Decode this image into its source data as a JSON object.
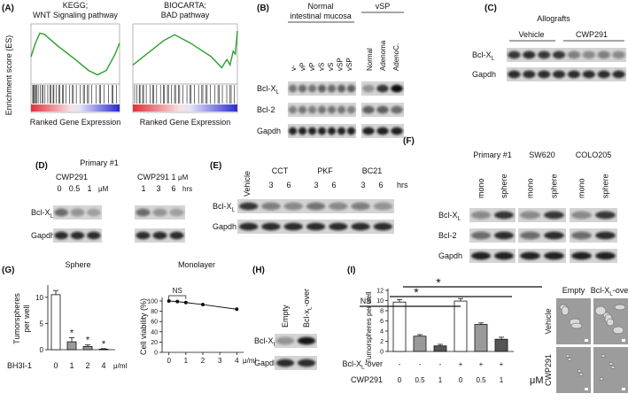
{
  "panels": {
    "A": {
      "label": "(A)",
      "y_label": "Enrichment score (ES)",
      "plots": [
        {
          "title": [
            "KEGG;",
            "WNT Signaling pathway"
          ],
          "x_label": "Ranked Gene Expression"
        },
        {
          "title": [
            "BIOCARTA;",
            "BAD pathway"
          ],
          "x_label": "Ranked Gene Expression"
        }
      ]
    },
    "B": {
      "label": "(B)",
      "groups": [
        {
          "title": [
            "Normal",
            "intestinal mucosa"
          ],
          "lanes": [
            "v-",
            "vP",
            "vP",
            "vS",
            "vS",
            "vSP",
            "vSP"
          ]
        },
        {
          "title": [
            "vSP"
          ],
          "lanes": [
            "Normal",
            "Adenoma",
            "AdenoC."
          ]
        }
      ],
      "rows": [
        {
          "name": "Bcl-X",
          "sub": "L"
        },
        "Bcl-2",
        "Gapdh"
      ]
    },
    "C": {
      "label": "(C)",
      "title": "Allografts",
      "groups": [
        "Vehicle",
        "CWP291"
      ],
      "rows": [
        {
          "name": "Bcl-X",
          "sub": "L"
        },
        "Gapdh"
      ]
    },
    "D": {
      "label": "(D)",
      "title": "Primary #1",
      "blocks": [
        {
          "header": "CWP291",
          "lanes": [
            "0",
            "0.5",
            "1"
          ],
          "unit": "μM"
        },
        {
          "header": "CWP291  1",
          "header_unit": "μM",
          "lanes": [
            "1",
            "3",
            "6"
          ],
          "unit": "hrs"
        }
      ],
      "rows": [
        {
          "name": "Bcl-X",
          "sub": "L"
        },
        "Gapdh"
      ]
    },
    "E": {
      "label": "(E)",
      "vehicle": "Vehicle",
      "groups": [
        {
          "name": "CCT",
          "lanes": [
            "3",
            "6"
          ]
        },
        {
          "name": "PKF",
          "lanes": [
            "3",
            "6"
          ]
        },
        {
          "name": "BC21",
          "lanes": [
            "3",
            "6"
          ]
        }
      ],
      "unit": "hrs",
      "rows": [
        {
          "name": "Bcl-X",
          "sub": "L"
        },
        "Gapdh"
      ]
    },
    "F": {
      "label": "(F)",
      "groups": [
        {
          "name": "Primary #1",
          "lanes": [
            "mono",
            "sphere"
          ]
        },
        {
          "name": "SW620",
          "lanes": [
            "mono",
            "sphere"
          ]
        },
        {
          "name": "COLO205",
          "lanes": [
            "mono",
            "sphere"
          ]
        }
      ],
      "rows": [
        {
          "name": "Bcl-X",
          "sub": "L"
        },
        "Bcl-2",
        "Gapdh"
      ]
    },
    "G": {
      "label": "(G)",
      "charts": [
        {
          "type": "bar",
          "title": "Sphere",
          "y_label": [
            "Tumorspheres",
            "per well"
          ],
          "x_label": "BH3I-1",
          "x_unit": "μ/ml",
          "categories": [
            "0",
            "1",
            "2",
            "4"
          ],
          "values": [
            10.5,
            1.5,
            0.6,
            0.1
          ],
          "errors": [
            0.8,
            0.8,
            0.3,
            0.1
          ],
          "colors": [
            "#ffffff",
            "#9a9a9a",
            "#9a9a9a",
            "#9a9a9a"
          ],
          "annotations": [
            null,
            "*",
            "*",
            "*"
          ],
          "ylim": [
            0,
            12
          ],
          "yticks": [
            0,
            5,
            10
          ]
        },
        {
          "type": "line",
          "title": "Monolayer",
          "y_label": "Cell viability (%)",
          "x_unit": "μ/ml",
          "annotation": "NS",
          "x": [
            0,
            0.5,
            1,
            2,
            4
          ],
          "values": [
            100,
            99,
            97,
            93,
            84
          ],
          "color": "#111111",
          "xlim": [
            -0.4,
            4.4
          ],
          "xticks": [
            0,
            1,
            2,
            3,
            4
          ],
          "ylim": [
            0,
            100
          ],
          "yticks": [
            0,
            20,
            40,
            60,
            80,
            100
          ]
        }
      ]
    },
    "H": {
      "label": "(H)",
      "lanes": [
        "Empty",
        {
          "name": "Bcl-x",
          "sub": "L",
          "after": "-over"
        }
      ],
      "rows": [
        {
          "name": "Bcl-X",
          "sub": "L"
        },
        "Gapdh"
      ]
    },
    "I": {
      "label": "(I)",
      "chart": {
        "type": "bar",
        "y_label": "Tumorspheres per well",
        "values": [
          9.7,
          3.0,
          1.1,
          9.9,
          5.3,
          2.4
        ],
        "errors": [
          0.5,
          0.3,
          0.3,
          0.5,
          0.3,
          0.4
        ],
        "colors": [
          "#ffffff",
          "#9a9a9a",
          "#555555",
          "#ffffff",
          "#9a9a9a",
          "#555555"
        ],
        "ylim": [
          0,
          12
        ],
        "yticks": [
          0,
          2,
          4,
          6,
          8,
          10,
          12
        ],
        "annotations": [
          "NS",
          "*",
          "*"
        ],
        "rows": [
          {
            "label": {
              "name": "Bcl-X",
              "sub": "L",
              "after": "-over"
            },
            "values": [
              "-",
              "-",
              "-",
              "+",
              "+",
              "+"
            ]
          },
          {
            "label": "CWP291",
            "values": [
              "0",
              "0.5",
              "1",
              "0",
              "0.5",
              "1"
            ],
            "unit": "μM"
          }
        ]
      },
      "images": {
        "columns": [
          "Empty",
          {
            "name": "Bcl-X",
            "sub": "L",
            "after": "-over"
          }
        ],
        "rows": [
          "Vehicle",
          "CWP291"
        ]
      }
    }
  }
}
